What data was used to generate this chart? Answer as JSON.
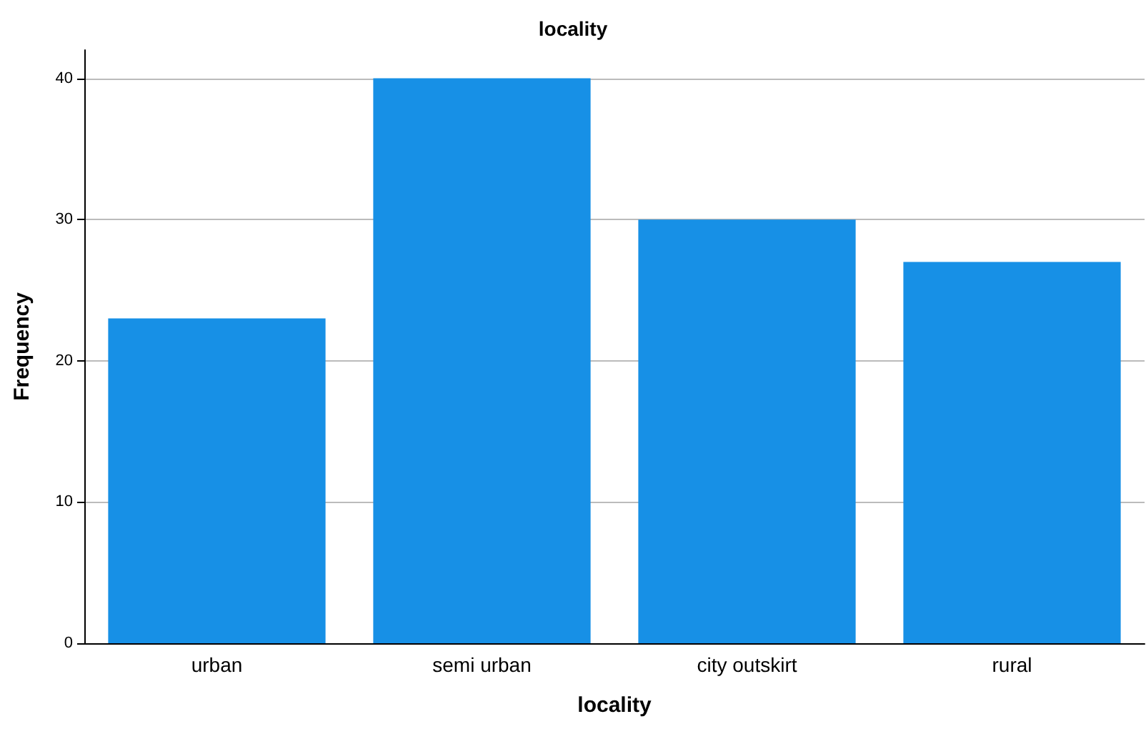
{
  "chart_data": {
    "type": "bar",
    "title": "locality",
    "xlabel": "locality",
    "ylabel": "Frequency",
    "categories": [
      "urban",
      "semi urban",
      "city outskirt",
      "rural"
    ],
    "values": [
      23,
      40,
      30,
      27
    ],
    "color": "#1790e6",
    "ylim": [
      0,
      42
    ],
    "yticks": [
      0,
      10,
      20,
      30,
      40
    ],
    "grid": "y"
  }
}
